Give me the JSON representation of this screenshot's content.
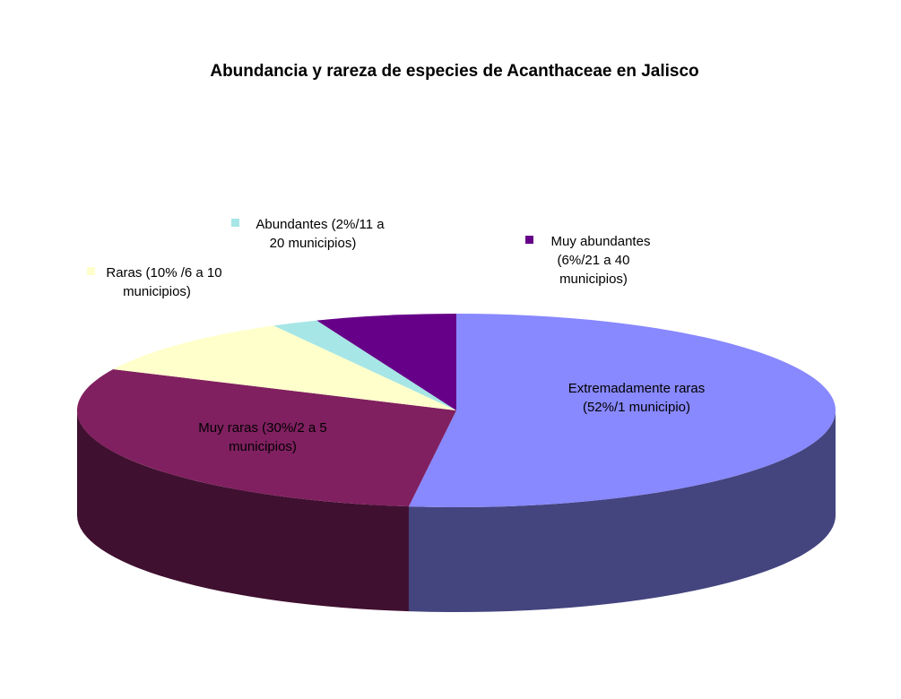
{
  "chart_data": {
    "type": "pie",
    "title": "Abundancia y rareza de especies de Acanthaceae en Jalisco",
    "slices": [
      {
        "key": "extremadamente",
        "value": 52,
        "color": "#8888FF",
        "side_color": "#44447F",
        "label": [
          "Extremadamente raras",
          "(52%/1 municipio)"
        ]
      },
      {
        "key": "muy_raras",
        "value": 30,
        "color": "#802060",
        "side_color": "#401030",
        "label": [
          "Muy raras (30%/2 a 5",
          "municipios)"
        ]
      },
      {
        "key": "raras",
        "value": 10,
        "color": "#FFFFCC",
        "side_color": "#7F7F66",
        "label": [
          "Raras (10% /6 a 10",
          "municipios)"
        ]
      },
      {
        "key": "abundantes",
        "value": 2,
        "color": "#A6E6E6",
        "side_color": "#537373",
        "label": [
          "Abundantes (2%/11 a",
          "20 municipios)"
        ]
      },
      {
        "key": "muy_abundantes",
        "value": 6,
        "color": "#660088",
        "side_color": "#330044",
        "label": [
          "Muy abundantes",
          "(6%/21 a 40",
          "municipios)"
        ]
      }
    ]
  }
}
